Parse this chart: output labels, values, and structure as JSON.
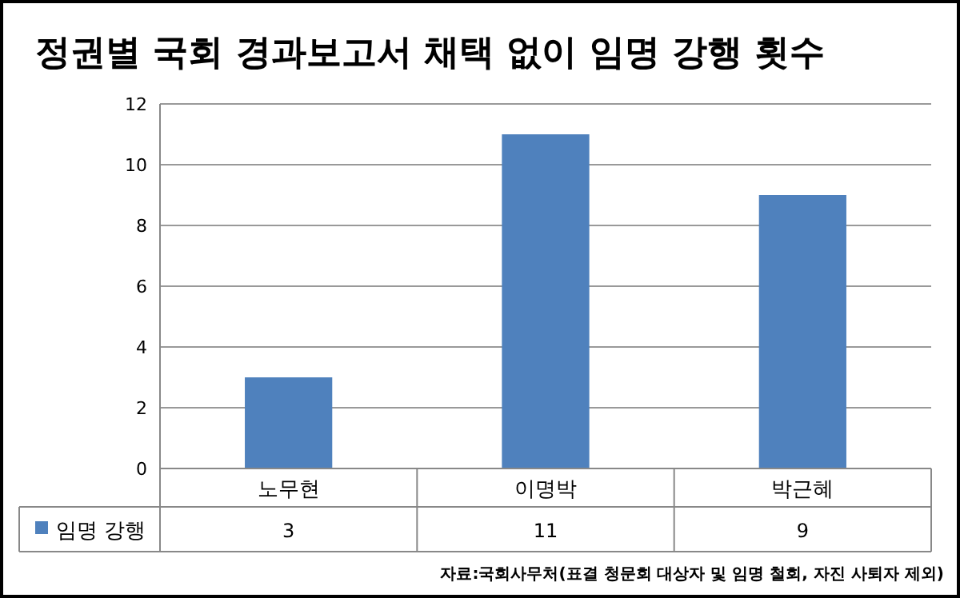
{
  "chart_data": {
    "type": "bar",
    "title": "정권별 국회 경과보고서 채택 없이 임명 강행 횟수",
    "categories": [
      "노무현",
      "이명박",
      "박근혜"
    ],
    "series": [
      {
        "name": "임명 강행",
        "color": "#4f81bd",
        "values": [
          3,
          11,
          9
        ]
      }
    ],
    "ylim": [
      0,
      12
    ],
    "yticks": [
      0,
      2,
      4,
      6,
      8,
      10,
      12
    ],
    "grid": "y",
    "legend": "bottom left",
    "data_labels": true,
    "annotations": [
      "자료:국회사무처(표결 청문회 대상자 및 임명 철회, 자진 사퇴자 제외)"
    ]
  }
}
